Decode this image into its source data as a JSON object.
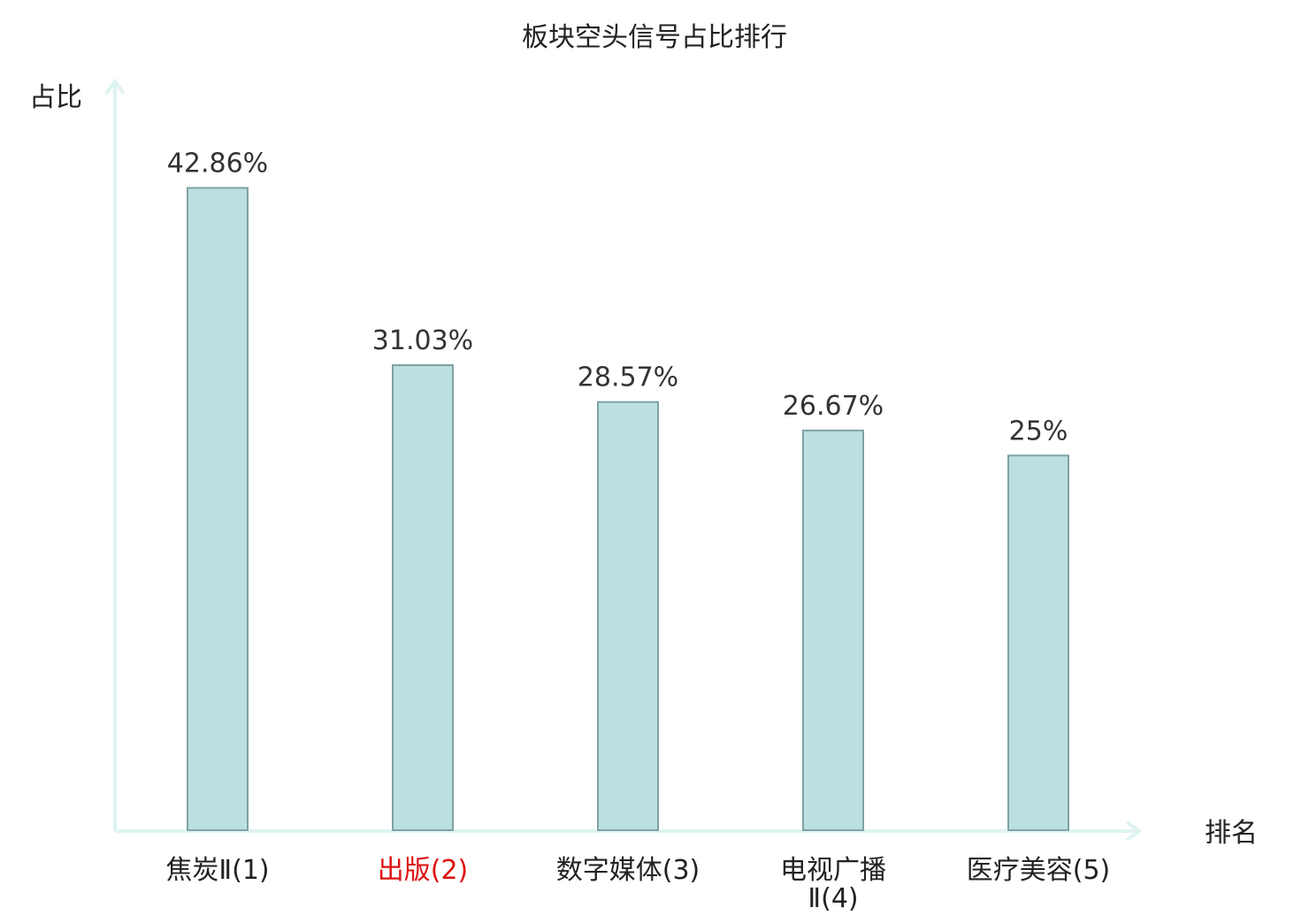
{
  "chart_data": {
    "type": "bar",
    "title": "板块空头信号占比排行",
    "xlabel": "排名",
    "ylabel": "占比",
    "categories": [
      {
        "name": "焦炭Ⅱ",
        "rank": "(1)",
        "highlight": false
      },
      {
        "name": "出版",
        "rank": "(2)",
        "highlight": true
      },
      {
        "name": "数字媒体",
        "rank": "(3)",
        "highlight": false
      },
      {
        "name": "电视广播Ⅱ",
        "rank": "(4)",
        "highlight": false
      },
      {
        "name": "医疗美容",
        "rank": "(5)",
        "highlight": false
      }
    ],
    "values": [
      42.86,
      31.03,
      28.57,
      26.67,
      25
    ],
    "value_labels": [
      "42.86%",
      "31.03%",
      "28.57%",
      "26.67%",
      "25%"
    ],
    "ylim": [
      0,
      50
    ],
    "grid": false,
    "colors": {
      "bar_fill": "#bce0e1",
      "bar_stroke": "#7fa2a5",
      "axis": "#dff3f1",
      "text": "#222222",
      "value_text": "#333333",
      "highlight_text": "#dd1111"
    }
  }
}
